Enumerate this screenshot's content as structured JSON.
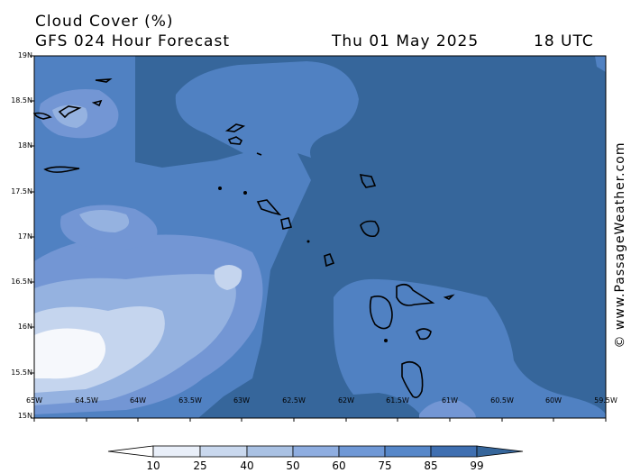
{
  "header": {
    "title": "Cloud Cover (%)",
    "subtitle": "GFS 024 Hour Forecast",
    "date": "Thu 01 May 2025",
    "time": "18 UTC"
  },
  "credit": "© www.PassageWeather.com",
  "map": {
    "lat_labels": [
      "19N",
      "18.5N",
      "18N",
      "17.5N",
      "17N",
      "16.5N",
      "16N",
      "15.5N",
      "15N"
    ],
    "lon_labels": [
      "65W",
      "64.5W",
      "64W",
      "63.5W",
      "63W",
      "62.5W",
      "62W",
      "61.5W",
      "61W",
      "60.5W",
      "60W",
      "59.5W"
    ]
  },
  "legend": {
    "values": [
      "10",
      "25",
      "40",
      "50",
      "60",
      "75",
      "85",
      "99"
    ],
    "colors": [
      "#ffffff",
      "#e9eff9",
      "#c9d8ee",
      "#a9c1e3",
      "#8eade0",
      "#6f98d6",
      "#5687c9",
      "#3f6fb1"
    ]
  },
  "colors": {
    "dark": "#36669b",
    "mid": "#5081c2",
    "light": "#7396d4",
    "lighter": "#95b2e0",
    "pale": "#c5d5ee",
    "white": "#f6f8fc"
  }
}
